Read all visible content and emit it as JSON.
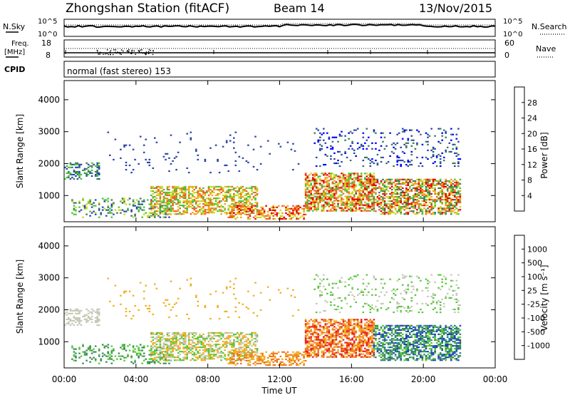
{
  "header": {
    "station": "Zhongshan Station (fitACF)",
    "beam": "Beam 14",
    "date": "13/Nov/2015"
  },
  "top_panels": {
    "nsky_label": "N.Sky",
    "nsky_ticks": [
      "10^5",
      "10^0"
    ],
    "nsearch_label": "N.Search",
    "nsearch_ticks": [
      "10^5",
      "10^0"
    ],
    "freq_label": "Freq.",
    "freq_unit": "[MHz]",
    "freq_ticks": [
      "18",
      "8"
    ],
    "nave_label": "Nave",
    "nave_ticks": [
      "60",
      "0"
    ],
    "cpid_label": "CPID",
    "cpid_value": "normal (fast stereo) 153"
  },
  "chart_data": [
    {
      "type": "heatmap",
      "name": "power",
      "ylabel": "Slant Range [km]",
      "xlabel": "",
      "ylim": [
        180,
        4600
      ],
      "yticks": [
        "1000",
        "2000",
        "3000",
        "4000"
      ],
      "colorbar_label": "Power [dB]",
      "colorbar_ticks": [
        "4",
        "8",
        "12",
        "16",
        "20",
        "24",
        "28"
      ],
      "colors": [
        "#0000ff",
        "#2a46a8",
        "#3a7a5e",
        "#48c23c",
        "#c8d81c",
        "#f4a020",
        "#f06020",
        "#e80000"
      ],
      "range_dB": [
        0,
        32
      ]
    },
    {
      "type": "heatmap",
      "name": "velocity",
      "ylabel": "Slant Range [km]",
      "xlabel": "Time UT",
      "ylim": [
        180,
        4600
      ],
      "yticks": [
        "1000",
        "2000",
        "3000",
        "4000"
      ],
      "xticks": [
        "00:00",
        "04:00",
        "08:00",
        "12:00",
        "16:00",
        "20:00",
        "00:00"
      ],
      "colorbar_label": "Velocity [m s⁻¹]",
      "colorbar_ticks": [
        "1000",
        "500",
        "100",
        "25",
        "-25",
        "-100",
        "-500",
        "-1000"
      ],
      "colors": [
        "#2040b8",
        "#2f7aa0",
        "#3a8c58",
        "#58c838",
        "#c8c8b8",
        "#f0b020",
        "#f07820",
        "#e82020",
        "#e80000"
      ]
    }
  ]
}
